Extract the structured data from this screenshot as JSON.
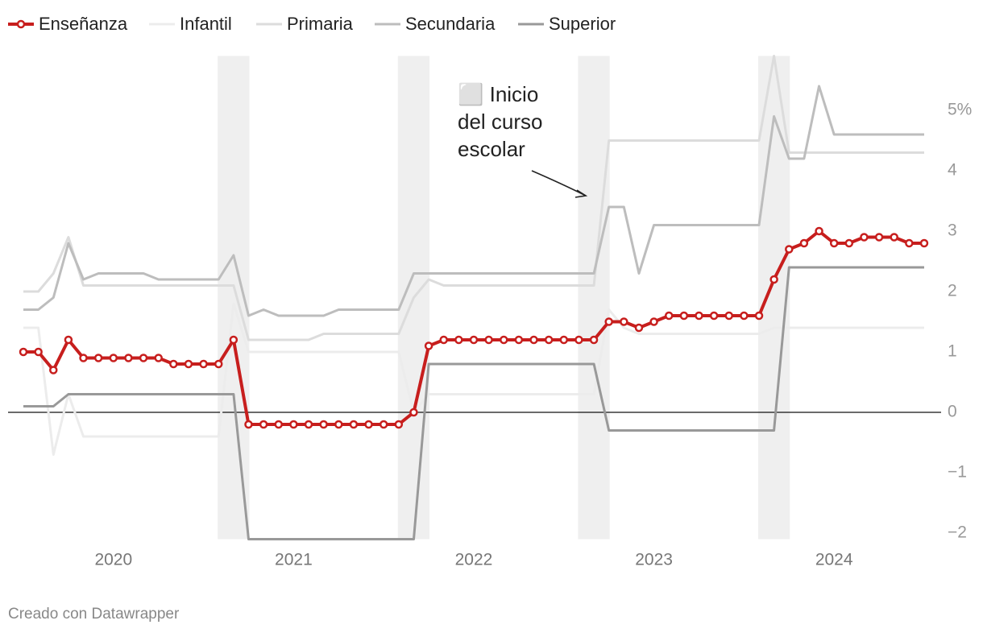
{
  "chart_data": {
    "type": "line",
    "categories": [
      null,
      null,
      null,
      null,
      null,
      null,
      "2020",
      null,
      null,
      null,
      null,
      null,
      null,
      null,
      null,
      null,
      null,
      null,
      "2021",
      null,
      null,
      null,
      null,
      null,
      null,
      null,
      null,
      null,
      null,
      null,
      "2022",
      null,
      null,
      null,
      null,
      null,
      null,
      null,
      null,
      null,
      null,
      null,
      "2023",
      null,
      null,
      null,
      null,
      null,
      null,
      null,
      null,
      null,
      null,
      null,
      "2024",
      null,
      null,
      null,
      null,
      null,
      null
    ],
    "series": [
      {
        "name": "Infantil",
        "color": "#ececec",
        "width": 3,
        "values": [
          1.4,
          1.4,
          -0.7,
          0.3,
          -0.4,
          -0.4,
          -0.4,
          -0.4,
          -0.4,
          -0.4,
          -0.4,
          -0.4,
          -0.4,
          -0.4,
          1.8,
          1.0,
          1.0,
          1.0,
          1.0,
          1.0,
          1.0,
          1.0,
          1.0,
          1.0,
          1.0,
          1.0,
          0.0,
          0.3,
          0.3,
          0.3,
          0.3,
          0.3,
          0.3,
          0.3,
          0.3,
          0.3,
          0.3,
          0.3,
          0.3,
          1.7,
          1.4,
          1.3,
          1.3,
          1.3,
          1.3,
          1.3,
          1.3,
          1.3,
          1.3,
          1.3,
          1.4,
          1.4,
          1.4,
          1.4,
          1.4,
          1.4,
          1.4,
          1.4,
          1.4,
          1.4,
          1.4
        ]
      },
      {
        "name": "Primaria",
        "color": "#dcdcdc",
        "width": 3,
        "values": [
          2.0,
          2.0,
          2.3,
          2.9,
          2.1,
          2.1,
          2.1,
          2.1,
          2.1,
          2.1,
          2.1,
          2.1,
          2.1,
          2.1,
          2.1,
          1.2,
          1.2,
          1.2,
          1.2,
          1.2,
          1.3,
          1.3,
          1.3,
          1.3,
          1.3,
          1.3,
          1.9,
          2.2,
          2.1,
          2.1,
          2.1,
          2.1,
          2.1,
          2.1,
          2.1,
          2.1,
          2.1,
          2.1,
          2.1,
          4.5,
          4.5,
          4.5,
          4.5,
          4.5,
          4.5,
          4.5,
          4.5,
          4.5,
          4.5,
          4.5,
          5.9,
          4.3,
          4.3,
          4.3,
          4.3,
          4.3,
          4.3,
          4.3,
          4.3,
          4.3,
          4.3
        ]
      },
      {
        "name": "Secundaria",
        "color": "#bdbdbd",
        "width": 3,
        "values": [
          1.7,
          1.7,
          1.9,
          2.8,
          2.2,
          2.3,
          2.3,
          2.3,
          2.3,
          2.2,
          2.2,
          2.2,
          2.2,
          2.2,
          2.6,
          1.6,
          1.7,
          1.6,
          1.6,
          1.6,
          1.6,
          1.7,
          1.7,
          1.7,
          1.7,
          1.7,
          2.3,
          2.3,
          2.3,
          2.3,
          2.3,
          2.3,
          2.3,
          2.3,
          2.3,
          2.3,
          2.3,
          2.3,
          2.3,
          3.4,
          3.4,
          2.3,
          3.1,
          3.1,
          3.1,
          3.1,
          3.1,
          3.1,
          3.1,
          3.1,
          4.9,
          4.2,
          4.2,
          5.4,
          4.6,
          4.6,
          4.6,
          4.6,
          4.6,
          4.6,
          4.6
        ]
      },
      {
        "name": "Superior",
        "color": "#999999",
        "width": 3,
        "values": [
          0.1,
          0.1,
          0.1,
          0.3,
          0.3,
          0.3,
          0.3,
          0.3,
          0.3,
          0.3,
          0.3,
          0.3,
          0.3,
          0.3,
          0.3,
          -2.1,
          -2.1,
          -2.1,
          -2.1,
          -2.1,
          -2.1,
          -2.1,
          -2.1,
          -2.1,
          -2.1,
          -2.1,
          -2.1,
          0.8,
          0.8,
          0.8,
          0.8,
          0.8,
          0.8,
          0.8,
          0.8,
          0.8,
          0.8,
          0.8,
          0.8,
          -0.3,
          -0.3,
          -0.3,
          -0.3,
          -0.3,
          -0.3,
          -0.3,
          -0.3,
          -0.3,
          -0.3,
          -0.3,
          -0.3,
          2.4,
          2.4,
          2.4,
          2.4,
          2.4,
          2.4,
          2.4,
          2.4,
          2.4,
          2.4
        ]
      },
      {
        "name": "Enseñanza",
        "color": "#c71e1d",
        "width": 4,
        "markers": true,
        "values": [
          1.0,
          1.0,
          0.7,
          1.2,
          0.9,
          0.9,
          0.9,
          0.9,
          0.9,
          0.9,
          0.8,
          0.8,
          0.8,
          0.8,
          1.2,
          -0.2,
          -0.2,
          -0.2,
          -0.2,
          -0.2,
          -0.2,
          -0.2,
          -0.2,
          -0.2,
          -0.2,
          -0.2,
          0.0,
          1.1,
          1.2,
          1.2,
          1.2,
          1.2,
          1.2,
          1.2,
          1.2,
          1.2,
          1.2,
          1.2,
          1.2,
          1.5,
          1.5,
          1.4,
          1.5,
          1.6,
          1.6,
          1.6,
          1.6,
          1.6,
          1.6,
          1.6,
          2.2,
          2.7,
          2.8,
          3.0,
          2.8,
          2.8,
          2.9,
          2.9,
          2.9,
          2.8,
          2.8
        ]
      }
    ],
    "legend_order": [
      "Enseñanza",
      "Infantil",
      "Primaria",
      "Secundaria",
      "Superior"
    ],
    "shaded_ranges": [
      [
        13,
        15
      ],
      [
        25,
        27
      ],
      [
        37,
        39
      ],
      [
        49,
        51
      ]
    ],
    "shade_color": "#efefef",
    "annotation": {
      "lines": [
        "⬜ Inicio",
        "del curso",
        "escolar"
      ]
    },
    "ylim": [
      -2.1,
      5.9
    ],
    "yticks": [
      {
        "value": -2,
        "label": "−2"
      },
      {
        "value": -1,
        "label": "−1"
      },
      0,
      1,
      2,
      3,
      4,
      {
        "value": 5,
        "label": "5%"
      }
    ],
    "grid": false,
    "source": "Creado con Datawrapper"
  }
}
